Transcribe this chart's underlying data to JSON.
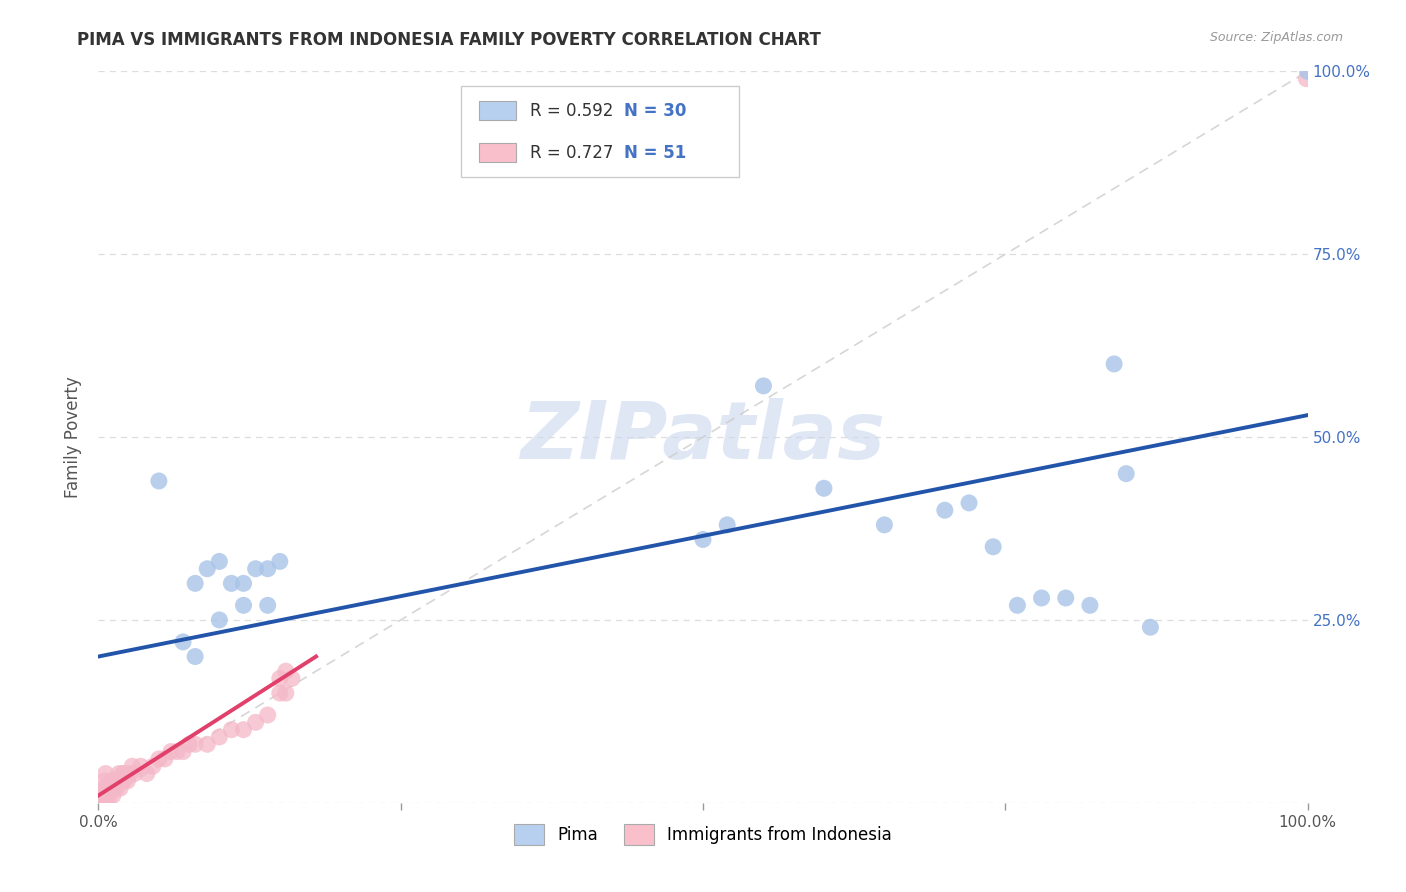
{
  "title": "PIMA VS IMMIGRANTS FROM INDONESIA FAMILY POVERTY CORRELATION CHART",
  "source": "Source: ZipAtlas.com",
  "ylabel": "Family Poverty",
  "legend_labels": [
    "Pima",
    "Immigrants from Indonesia"
  ],
  "r_pima": 0.592,
  "n_pima": 30,
  "r_indonesia": 0.727,
  "n_indonesia": 51,
  "pima_color": "#a8c4e8",
  "pima_edge": "#4472c4",
  "indonesia_color": "#f4b8c8",
  "indonesia_edge": "#e05878",
  "legend_box_pima": "#b8d0f0",
  "legend_box_indonesia": "#f9c0cc",
  "pima_trend_color": "#2255aa",
  "indonesia_trend_color": "#e0406a",
  "diag_color": "#cccccc",
  "watermark_color": "#ccd8ee",
  "xlim": [
    0,
    1
  ],
  "ylim": [
    0,
    1
  ],
  "xticks": [
    0,
    0.25,
    0.5,
    0.75,
    1.0
  ],
  "yticks": [
    0,
    0.25,
    0.5,
    0.75,
    1.0
  ],
  "xtick_labels": [
    "0.0%",
    "",
    "",
    "",
    "100.0%"
  ],
  "ytick_labels_right": [
    "",
    "25.0%",
    "50.0%",
    "75.0%",
    "100.0%"
  ],
  "watermark": "ZIPatlas",
  "pima_x": [
    0.05,
    0.07,
    0.08,
    0.09,
    0.1,
    0.11,
    0.12,
    0.13,
    0.14,
    0.15,
    0.08,
    0.1,
    0.12,
    0.14,
    0.5,
    0.52,
    0.55,
    0.6,
    0.65,
    0.7,
    0.72,
    0.74,
    0.76,
    0.78,
    0.8,
    0.82,
    0.84,
    0.85,
    0.87,
    1.0
  ],
  "pima_y": [
    0.44,
    0.22,
    0.3,
    0.32,
    0.33,
    0.3,
    0.3,
    0.32,
    0.32,
    0.33,
    0.2,
    0.25,
    0.27,
    0.27,
    0.36,
    0.38,
    0.57,
    0.43,
    0.38,
    0.4,
    0.41,
    0.35,
    0.27,
    0.28,
    0.28,
    0.27,
    0.6,
    0.45,
    0.24,
    1.0
  ],
  "indonesia_x": [
    0.001,
    0.001,
    0.002,
    0.003,
    0.004,
    0.005,
    0.005,
    0.006,
    0.006,
    0.007,
    0.008,
    0.009,
    0.01,
    0.011,
    0.012,
    0.013,
    0.014,
    0.015,
    0.016,
    0.017,
    0.018,
    0.019,
    0.02,
    0.021,
    0.022,
    0.024,
    0.026,
    0.028,
    0.03,
    0.035,
    0.04,
    0.045,
    0.05,
    0.055,
    0.06,
    0.065,
    0.07,
    0.075,
    0.08,
    0.09,
    0.1,
    0.11,
    0.12,
    0.13,
    0.14,
    0.15,
    0.15,
    0.155,
    0.155,
    0.16,
    0.999
  ],
  "indonesia_y": [
    0.0,
    0.01,
    0.01,
    0.0,
    0.02,
    0.01,
    0.03,
    0.01,
    0.04,
    0.02,
    0.0,
    0.01,
    0.02,
    0.03,
    0.01,
    0.02,
    0.03,
    0.02,
    0.03,
    0.04,
    0.02,
    0.03,
    0.04,
    0.03,
    0.04,
    0.03,
    0.04,
    0.05,
    0.04,
    0.05,
    0.04,
    0.05,
    0.06,
    0.06,
    0.07,
    0.07,
    0.07,
    0.08,
    0.08,
    0.08,
    0.09,
    0.1,
    0.1,
    0.11,
    0.12,
    0.15,
    0.17,
    0.15,
    0.18,
    0.17,
    0.99
  ],
  "pima_trend": [
    0.2,
    0.53
  ],
  "indo_trend_x": [
    0.0,
    0.18
  ],
  "indo_trend_y": [
    0.01,
    0.2
  ],
  "grid_color": "#dddddd",
  "title_fontsize": 12,
  "axis_label_fontsize": 12,
  "tick_fontsize": 11
}
